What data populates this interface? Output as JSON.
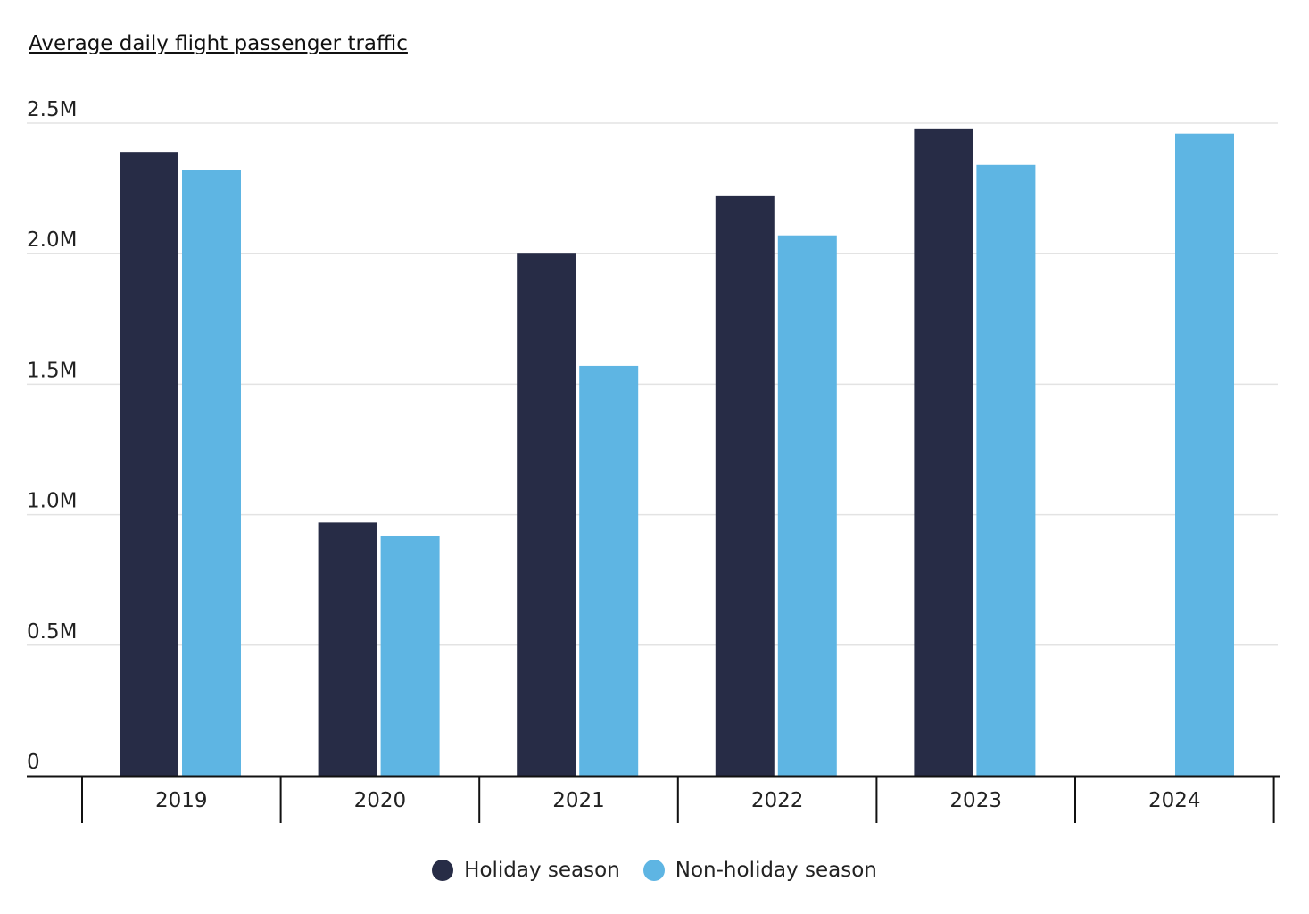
{
  "chart_data": {
    "type": "bar",
    "title": "Average daily flight passenger traffic",
    "xlabel": "",
    "ylabel": "",
    "categories": [
      "2019",
      "2020",
      "2021",
      "2022",
      "2023",
      "2024"
    ],
    "series": [
      {
        "name": "Holiday season",
        "color": "#272C46",
        "values": [
          2390000,
          970000,
          2000000,
          2220000,
          2480000,
          null
        ]
      },
      {
        "name": "Non-holiday season",
        "color": "#5EB5E3",
        "values": [
          2320000,
          920000,
          1570000,
          2070000,
          2340000,
          2460000
        ]
      }
    ],
    "ylim": [
      0,
      2500000
    ],
    "yticks": [
      0,
      500000,
      1000000,
      1500000,
      2000000,
      2500000
    ],
    "ytick_labels": [
      "0",
      "0.5M",
      "1.0M",
      "1.5M",
      "2.0M",
      "2.5M"
    ],
    "grid": true,
    "legend_position": "bottom-center"
  }
}
